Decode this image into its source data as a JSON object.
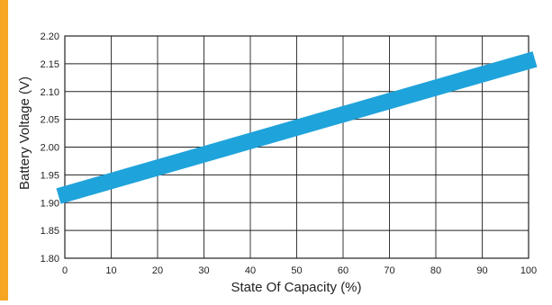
{
  "colors": {
    "accent_strip": "#f5a623",
    "line": "#1fa3db",
    "grid": "#222222"
  },
  "chart_data": {
    "type": "line",
    "title": "",
    "xlabel": "State Of Capacity (%)",
    "ylabel": "Battery Voltage (V)",
    "xlim": [
      0,
      100
    ],
    "ylim": [
      1.8,
      2.2
    ],
    "x_ticks": [
      "0",
      "10",
      "20",
      "30",
      "40",
      "50",
      "60",
      "70",
      "80",
      "90",
      "100"
    ],
    "y_ticks": [
      "1.80",
      "1.85",
      "1.90",
      "1.95",
      "2.00",
      "2.05",
      "2.10",
      "2.15",
      "2.20"
    ],
    "grid": true,
    "legend": "none",
    "series": [
      {
        "x": [
          0,
          100
        ],
        "y": [
          1.915,
          2.155
        ]
      }
    ]
  }
}
